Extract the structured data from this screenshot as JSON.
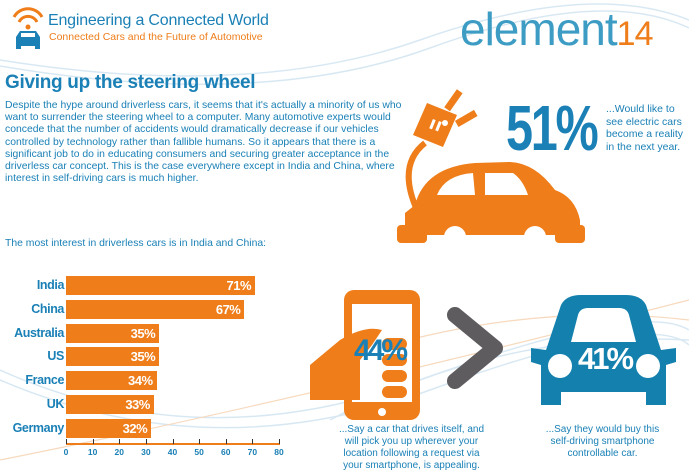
{
  "header": {
    "title": "Engineering a Connected World",
    "subtitle": "Connected Cars and the Future of Automotive",
    "logo_text": "element",
    "logo_suffix": "14"
  },
  "section_title": "Giving up the steering wheel",
  "paragraph": "Despite the hype around driverless cars, it seems that it's actually a minority of us who want to surrender the steering wheel to a computer. Many automotive experts would concede that the number of accidents would dramatically decrease if our vehicles controlled by technology rather than fallible humans. So it appears that there is a significant job to do in educating consumers and securing greater acceptance in the driverless car concept. This is the case everywhere except in India and China, where interest in self-driving cars is much higher.",
  "chart_intro": "The most interest in driverless cars is in India and China:",
  "chart_data": {
    "type": "bar",
    "orientation": "horizontal",
    "categories": [
      "India",
      "China",
      "Australia",
      "US",
      "France",
      "UK",
      "Germany"
    ],
    "values": [
      71,
      67,
      35,
      35,
      34,
      33,
      32
    ],
    "labels": [
      "71%",
      "67%",
      "35%",
      "35%",
      "34%",
      "33%",
      "32%"
    ],
    "xlim": [
      0,
      80
    ],
    "xticks": [
      "0",
      "10",
      "20",
      "30",
      "40",
      "50",
      "60",
      "70",
      "80"
    ],
    "color": "#ee7d1a"
  },
  "stats": [
    {
      "value": "51%",
      "caption": "...Would like to see electric cars become a reality in the next year."
    },
    {
      "value": "44%",
      "caption": "...Say a car that drives itself, and will pick you up wherever your location following a request via your smartphone, is appealing."
    },
    {
      "value": "41%",
      "caption": "...Say they would buy this self-driving smartphone controllable car."
    }
  ],
  "colors": {
    "orange": "#ee7d1a",
    "blue": "#1a80b6",
    "car_blue": "#1380ad",
    "gray": "#5f5c60"
  }
}
